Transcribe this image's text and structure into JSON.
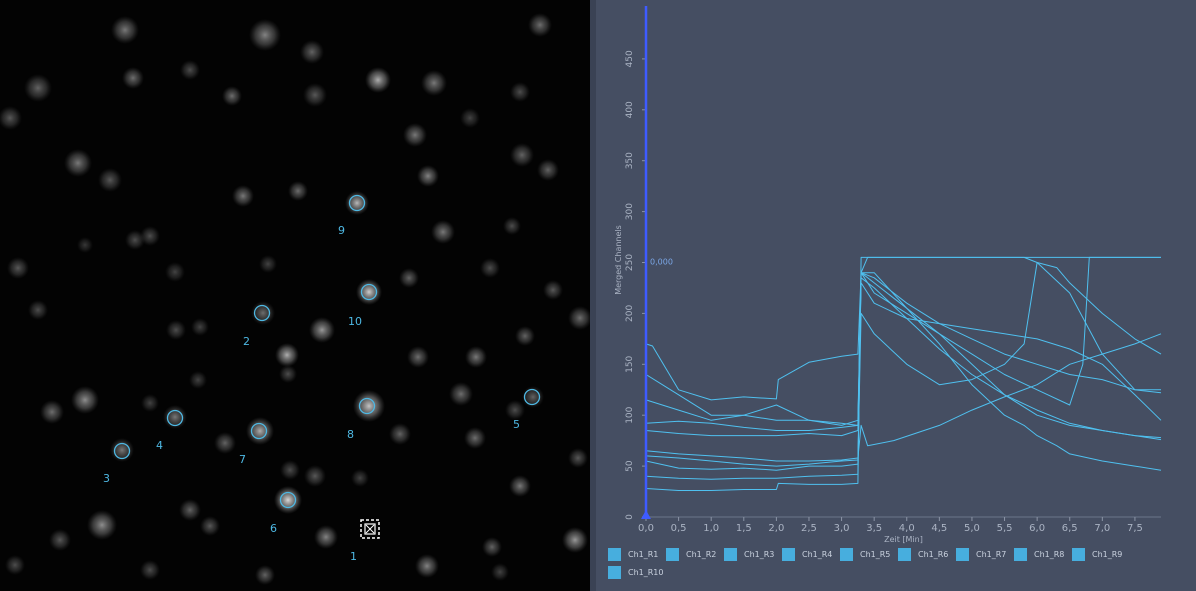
{
  "image_view": {
    "roi_labels": [
      {
        "id": "roi-1",
        "text": "1"
      },
      {
        "id": "roi-2",
        "text": "2"
      },
      {
        "id": "roi-3",
        "text": "3"
      },
      {
        "id": "roi-4",
        "text": "4"
      },
      {
        "id": "roi-5",
        "text": "5"
      },
      {
        "id": "roi-6",
        "text": "6"
      },
      {
        "id": "roi-7",
        "text": "7"
      },
      {
        "id": "roi-8",
        "text": "8"
      },
      {
        "id": "roi-9",
        "text": "9"
      },
      {
        "id": "roi-10",
        "text": "10"
      }
    ],
    "roi_color": "#4eb8e3"
  },
  "chart": {
    "ylabel": "Merged Channels",
    "xlabel": "Zeit [Min]",
    "cursor_label": "0,000",
    "yticks": [
      "0",
      "50",
      "100",
      "150",
      "200",
      "250",
      "300",
      "350",
      "400",
      "450"
    ],
    "xticks": [
      "0,0",
      "0,5",
      "1,0",
      "1,5",
      "2,0",
      "2,5",
      "3,0",
      "3,5",
      "4,0",
      "4,5",
      "5,0",
      "5,5",
      "6,0",
      "6,5",
      "7,0",
      "7,5"
    ],
    "legend": [
      "Ch1_R1",
      "Ch1_R2",
      "Ch1_R3",
      "Ch1_R4",
      "Ch1_R5",
      "Ch1_R6",
      "Ch1_R7",
      "Ch1_R8",
      "Ch1_R9",
      "Ch1_R10"
    ]
  },
  "chart_data": {
    "type": "line",
    "xlabel": "Zeit [Min]",
    "ylabel": "Merged Channels",
    "xlim": [
      0,
      7.9
    ],
    "ylim": [
      0,
      500
    ],
    "series": [
      {
        "name": "Ch1_R1",
        "x": [
          0,
          0.5,
          1,
          1.5,
          2,
          2.03,
          2.5,
          3,
          3.25,
          3.3,
          3.5,
          4,
          4.5,
          5,
          5.5,
          6,
          6.5,
          7,
          7.5,
          7.9
        ],
        "y": [
          28,
          26,
          26,
          27,
          27,
          33,
          32,
          32,
          33,
          255,
          255,
          255,
          255,
          255,
          255,
          255,
          255,
          255,
          255,
          255
        ]
      },
      {
        "name": "Ch1_R2",
        "x": [
          0,
          0.5,
          1,
          1.5,
          2,
          2.5,
          3,
          3.25,
          3.3,
          3.5,
          4,
          4.5,
          5,
          5.5,
          6,
          6.5,
          6.7,
          6.8,
          7,
          7.5,
          7.9
        ],
        "y": [
          40,
          38,
          37,
          38,
          38,
          40,
          41,
          42,
          240,
          230,
          205,
          180,
          160,
          140,
          125,
          110,
          150,
          255,
          255,
          255,
          255
        ]
      },
      {
        "name": "Ch1_R3",
        "x": [
          0,
          0.5,
          1,
          1.5,
          2,
          2.5,
          3,
          3.25,
          3.3,
          3.4,
          4,
          4.5,
          5,
          5.5,
          5.8,
          6,
          6.5,
          7,
          7.5,
          7.9
        ],
        "y": [
          55,
          48,
          47,
          48,
          46,
          50,
          50,
          52,
          240,
          255,
          255,
          255,
          255,
          255,
          255,
          250,
          220,
          160,
          125,
          122
        ]
      },
      {
        "name": "Ch1_R4",
        "x": [
          0,
          0.1,
          0.5,
          1,
          1.5,
          2,
          2.03,
          2.5,
          3,
          3.25,
          3.3,
          3.5,
          4,
          4.5,
          5,
          5.5,
          6,
          6.5,
          7,
          7.5,
          7.9
        ],
        "y": [
          170,
          168,
          125,
          115,
          118,
          116,
          135,
          152,
          158,
          160,
          240,
          235,
          210,
          190,
          175,
          160,
          150,
          140,
          135,
          125,
          125
        ]
      },
      {
        "name": "Ch1_R5",
        "x": [
          0,
          0.5,
          1,
          1.5,
          2,
          2.5,
          3,
          3.25,
          3.3,
          3.5,
          4,
          4.5,
          5,
          5.5,
          6,
          6.5,
          7,
          7.5,
          7.9
        ],
        "y": [
          140,
          120,
          100,
          100,
          110,
          95,
          90,
          95,
          240,
          220,
          200,
          180,
          150,
          120,
          100,
          90,
          85,
          80,
          78
        ]
      },
      {
        "name": "Ch1_R6",
        "x": [
          0,
          0.5,
          1,
          1.5,
          2,
          2.5,
          3,
          3.25,
          3.3,
          3.5,
          4,
          4.5,
          5,
          5.5,
          6,
          6.5,
          7,
          7.5,
          7.9
        ],
        "y": [
          115,
          105,
          95,
          100,
          95,
          95,
          92,
          90,
          230,
          210,
          195,
          190,
          185,
          180,
          175,
          165,
          150,
          120,
          95
        ]
      },
      {
        "name": "Ch1_R7",
        "x": [
          0,
          0.5,
          1,
          1.5,
          2,
          2.5,
          3,
          3.25,
          3.3,
          3.4,
          3.8,
          4.5,
          5,
          5.5,
          6,
          6.5,
          7,
          7.5,
          7.9
        ],
        "y": [
          65,
          62,
          60,
          58,
          55,
          55,
          56,
          58,
          90,
          70,
          75,
          90,
          105,
          118,
          130,
          150,
          160,
          170,
          180
        ]
      },
      {
        "name": "Ch1_R8",
        "x": [
          0,
          0.5,
          1,
          1.5,
          2,
          2.5,
          3,
          3.25,
          3.3,
          3.5,
          4,
          4.5,
          5,
          5.5,
          6,
          6.5,
          7,
          7.5,
          7.9
        ],
        "y": [
          92,
          94,
          92,
          88,
          85,
          85,
          88,
          90,
          235,
          225,
          195,
          165,
          140,
          120,
          105,
          92,
          85,
          80,
          76
        ]
      },
      {
        "name": "Ch1_R9",
        "x": [
          0,
          0.5,
          1,
          1.5,
          2,
          2.5,
          3,
          3.25,
          3.3,
          3.5,
          4,
          4.5,
          5,
          5.5,
          5.8,
          6,
          6.3,
          6.5,
          7,
          7.5,
          7.9
        ],
        "y": [
          85,
          82,
          80,
          80,
          80,
          82,
          80,
          85,
          240,
          240,
          205,
          170,
          130,
          100,
          90,
          80,
          70,
          62,
          55,
          50,
          46
        ]
      },
      {
        "name": "Ch1_R10",
        "x": [
          0,
          0.5,
          1,
          1.5,
          2,
          2.5,
          3,
          3.25,
          3.3,
          3.5,
          4,
          4.5,
          5,
          5.5,
          5.8,
          6,
          6.3,
          6.5,
          7,
          7.5,
          7.9
        ],
        "y": [
          60,
          58,
          55,
          52,
          50,
          52,
          55,
          56,
          200,
          180,
          150,
          130,
          135,
          150,
          170,
          250,
          245,
          230,
          200,
          175,
          160
        ]
      }
    ]
  }
}
